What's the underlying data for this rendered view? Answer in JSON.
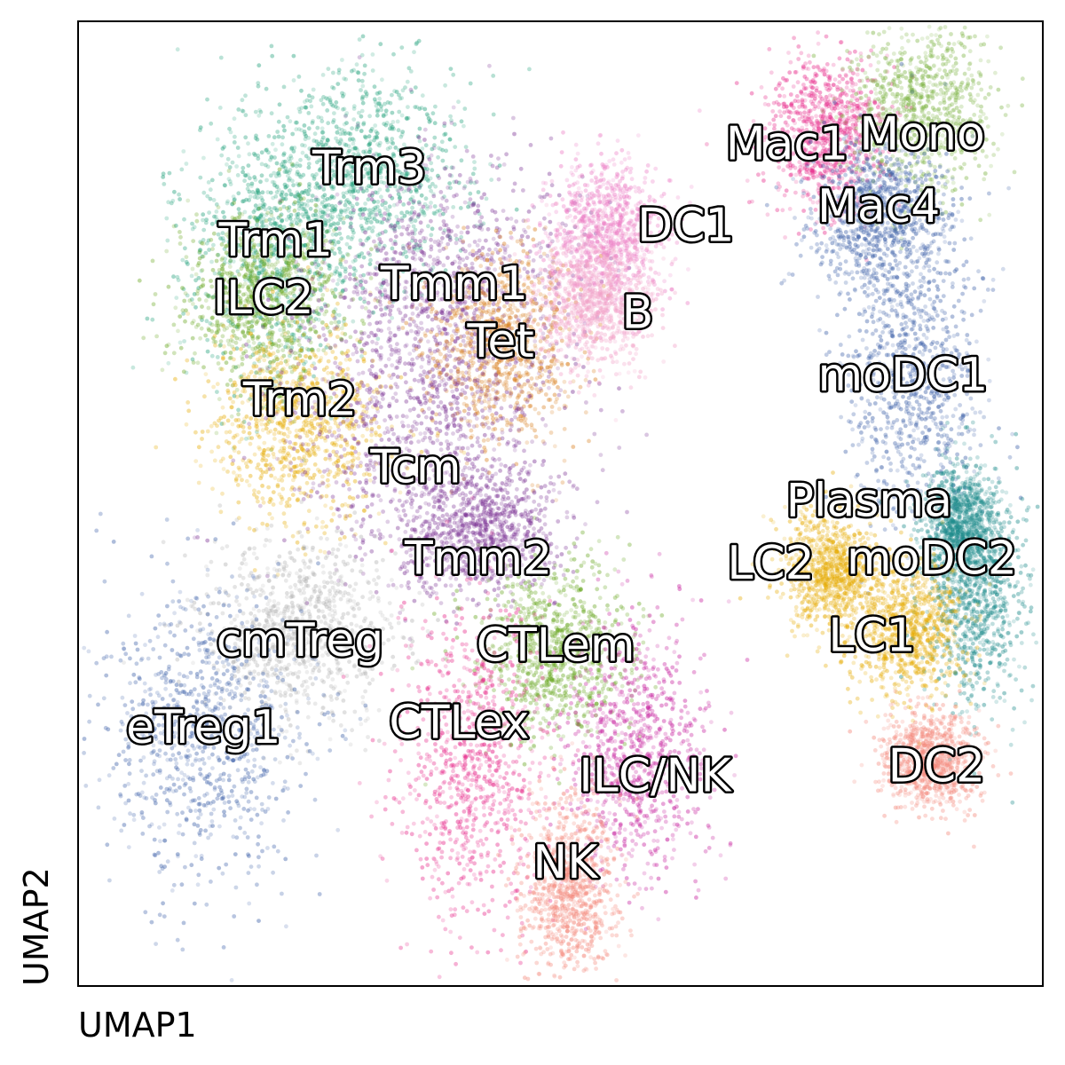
{
  "chart_data": {
    "type": "scatter",
    "title": "",
    "xlabel": "UMAP1",
    "ylabel": "UMAP2",
    "xlim": [
      0,
      100
    ],
    "ylim": [
      0,
      100
    ],
    "grid": false,
    "legend": "none (labels placed on clusters)",
    "clusters": [
      {
        "name": "Trm3",
        "x": 30.2,
        "y": 84.5,
        "sx": 5.5,
        "sy": 5.5,
        "color": "#1b9e77"
      },
      {
        "name": "Trm1",
        "x": 20.5,
        "y": 77.0,
        "sx": 5.0,
        "sy": 7.0,
        "color": "#1b9e77"
      },
      {
        "name": "ILC2",
        "x": 19.2,
        "y": 71.0,
        "sx": 4.0,
        "sy": 4.5,
        "color": "#66a61e"
      },
      {
        "name": "Tmm1",
        "x": 39.0,
        "y": 72.5,
        "sx": 6.5,
        "sy": 7.0,
        "color": "#7b3294"
      },
      {
        "name": "Tet",
        "x": 43.8,
        "y": 66.5,
        "sx": 3.8,
        "sy": 5.0,
        "color": "#d97f1e"
      },
      {
        "name": "Trm2",
        "x": 23.0,
        "y": 58.0,
        "sx": 4.5,
        "sy": 5.0,
        "color": "#e6ab02"
      },
      {
        "name": "Tcm",
        "x": 35.0,
        "y": 59.0,
        "sx": 7.0,
        "sy": 8.0,
        "color": "#7b3294"
      },
      {
        "name": "Tmm2",
        "x": 41.5,
        "y": 47.5,
        "sx": 4.0,
        "sy": 3.5,
        "color": "#7b3294"
      },
      {
        "name": "cmTreg",
        "x": 23.0,
        "y": 37.0,
        "sx": 5.0,
        "sy": 4.5,
        "color": "#b3b3b3"
      },
      {
        "name": "eTreg1",
        "x": 13.0,
        "y": 26.0,
        "sx": 5.5,
        "sy": 8.0,
        "color": "#3b5fa8"
      },
      {
        "name": "CTLem",
        "x": 49.5,
        "y": 34.5,
        "sx": 4.0,
        "sy": 4.5,
        "color": "#66a61e"
      },
      {
        "name": "CTLex",
        "x": 41.0,
        "y": 23.5,
        "sx": 3.8,
        "sy": 8.5,
        "color": "#e7298a"
      },
      {
        "name": "ILC/NK",
        "x": 58.0,
        "y": 24.0,
        "sx": 3.5,
        "sy": 6.5,
        "color": "#c51b9c"
      },
      {
        "name": "NK",
        "x": 51.0,
        "y": 10.0,
        "sx": 2.5,
        "sy": 4.5,
        "color": "#f4877a"
      },
      {
        "name": "DC1",
        "x": 55.0,
        "y": 78.0,
        "sx": 3.0,
        "sy": 4.0,
        "color": "#ec7bc4"
      },
      {
        "name": "B",
        "x": 53.5,
        "y": 71.0,
        "sx": 3.0,
        "sy": 3.5,
        "color": "#f2a1c7"
      },
      {
        "name": "Mac1",
        "x": 77.5,
        "y": 88.5,
        "sx": 3.0,
        "sy": 4.0,
        "color": "#e7298a"
      },
      {
        "name": "Mono",
        "x": 87.5,
        "y": 91.0,
        "sx": 3.5,
        "sy": 4.5,
        "color": "#7cb342"
      },
      {
        "name": "Mac4",
        "x": 83.0,
        "y": 80.0,
        "sx": 3.5,
        "sy": 4.0,
        "color": "#3b5fa8"
      },
      {
        "name": "moDC1",
        "x": 86.5,
        "y": 64.0,
        "sx": 3.5,
        "sy": 7.5,
        "color": "#3b5fa8"
      },
      {
        "name": "Plasma",
        "x": 91.5,
        "y": 48.0,
        "sx": 2.0,
        "sy": 3.0,
        "color": "#1b8a8a"
      },
      {
        "name": "LC2",
        "x": 78.0,
        "y": 43.0,
        "sx": 2.5,
        "sy": 3.0,
        "color": "#e6ab02"
      },
      {
        "name": "moDC2",
        "x": 93.0,
        "y": 40.5,
        "sx": 2.5,
        "sy": 5.5,
        "color": "#1b8a8a"
      },
      {
        "name": "LC1",
        "x": 86.0,
        "y": 37.0,
        "sx": 3.0,
        "sy": 3.5,
        "color": "#e6ab02"
      },
      {
        "name": "DC2",
        "x": 88.5,
        "y": 23.5,
        "sx": 2.5,
        "sy": 2.5,
        "color": "#f4877a"
      }
    ],
    "labels": [
      {
        "text": "Trm3",
        "x": 30.2,
        "y": 84.5
      },
      {
        "text": "Trm1",
        "x": 20.5,
        "y": 77.0
      },
      {
        "text": "ILC2",
        "x": 19.2,
        "y": 71.0
      },
      {
        "text": "Tmm1",
        "x": 39.0,
        "y": 72.5
      },
      {
        "text": "Tet",
        "x": 43.8,
        "y": 66.5
      },
      {
        "text": "Trm2",
        "x": 23.0,
        "y": 60.5
      },
      {
        "text": "Tcm",
        "x": 35.0,
        "y": 53.5
      },
      {
        "text": "Tmm2",
        "x": 41.5,
        "y": 44.0
      },
      {
        "text": "cmTreg",
        "x": 23.0,
        "y": 35.5
      },
      {
        "text": "eTreg1",
        "x": 13.0,
        "y": 26.5
      },
      {
        "text": "CTLem",
        "x": 49.5,
        "y": 35.0
      },
      {
        "text": "CTLex",
        "x": 39.5,
        "y": 27.0
      },
      {
        "text": "ILC/NK",
        "x": 59.8,
        "y": 21.5
      },
      {
        "text": "NK",
        "x": 50.5,
        "y": 12.5
      },
      {
        "text": "DC1",
        "x": 63.0,
        "y": 78.5
      },
      {
        "text": "B",
        "x": 58.0,
        "y": 69.5
      },
      {
        "text": "Mac1",
        "x": 73.5,
        "y": 87.0
      },
      {
        "text": "Mono",
        "x": 87.5,
        "y": 88.0
      },
      {
        "text": "Mac4",
        "x": 83.0,
        "y": 80.5
      },
      {
        "text": "moDC1",
        "x": 85.5,
        "y": 63.0
      },
      {
        "text": "Plasma",
        "x": 82.0,
        "y": 50.0
      },
      {
        "text": "LC2",
        "x": 71.8,
        "y": 43.5
      },
      {
        "text": "moDC2",
        "x": 88.5,
        "y": 44.0
      },
      {
        "text": "LC1",
        "x": 82.3,
        "y": 36.0
      },
      {
        "text": "DC2",
        "x": 89.0,
        "y": 22.5
      }
    ]
  }
}
